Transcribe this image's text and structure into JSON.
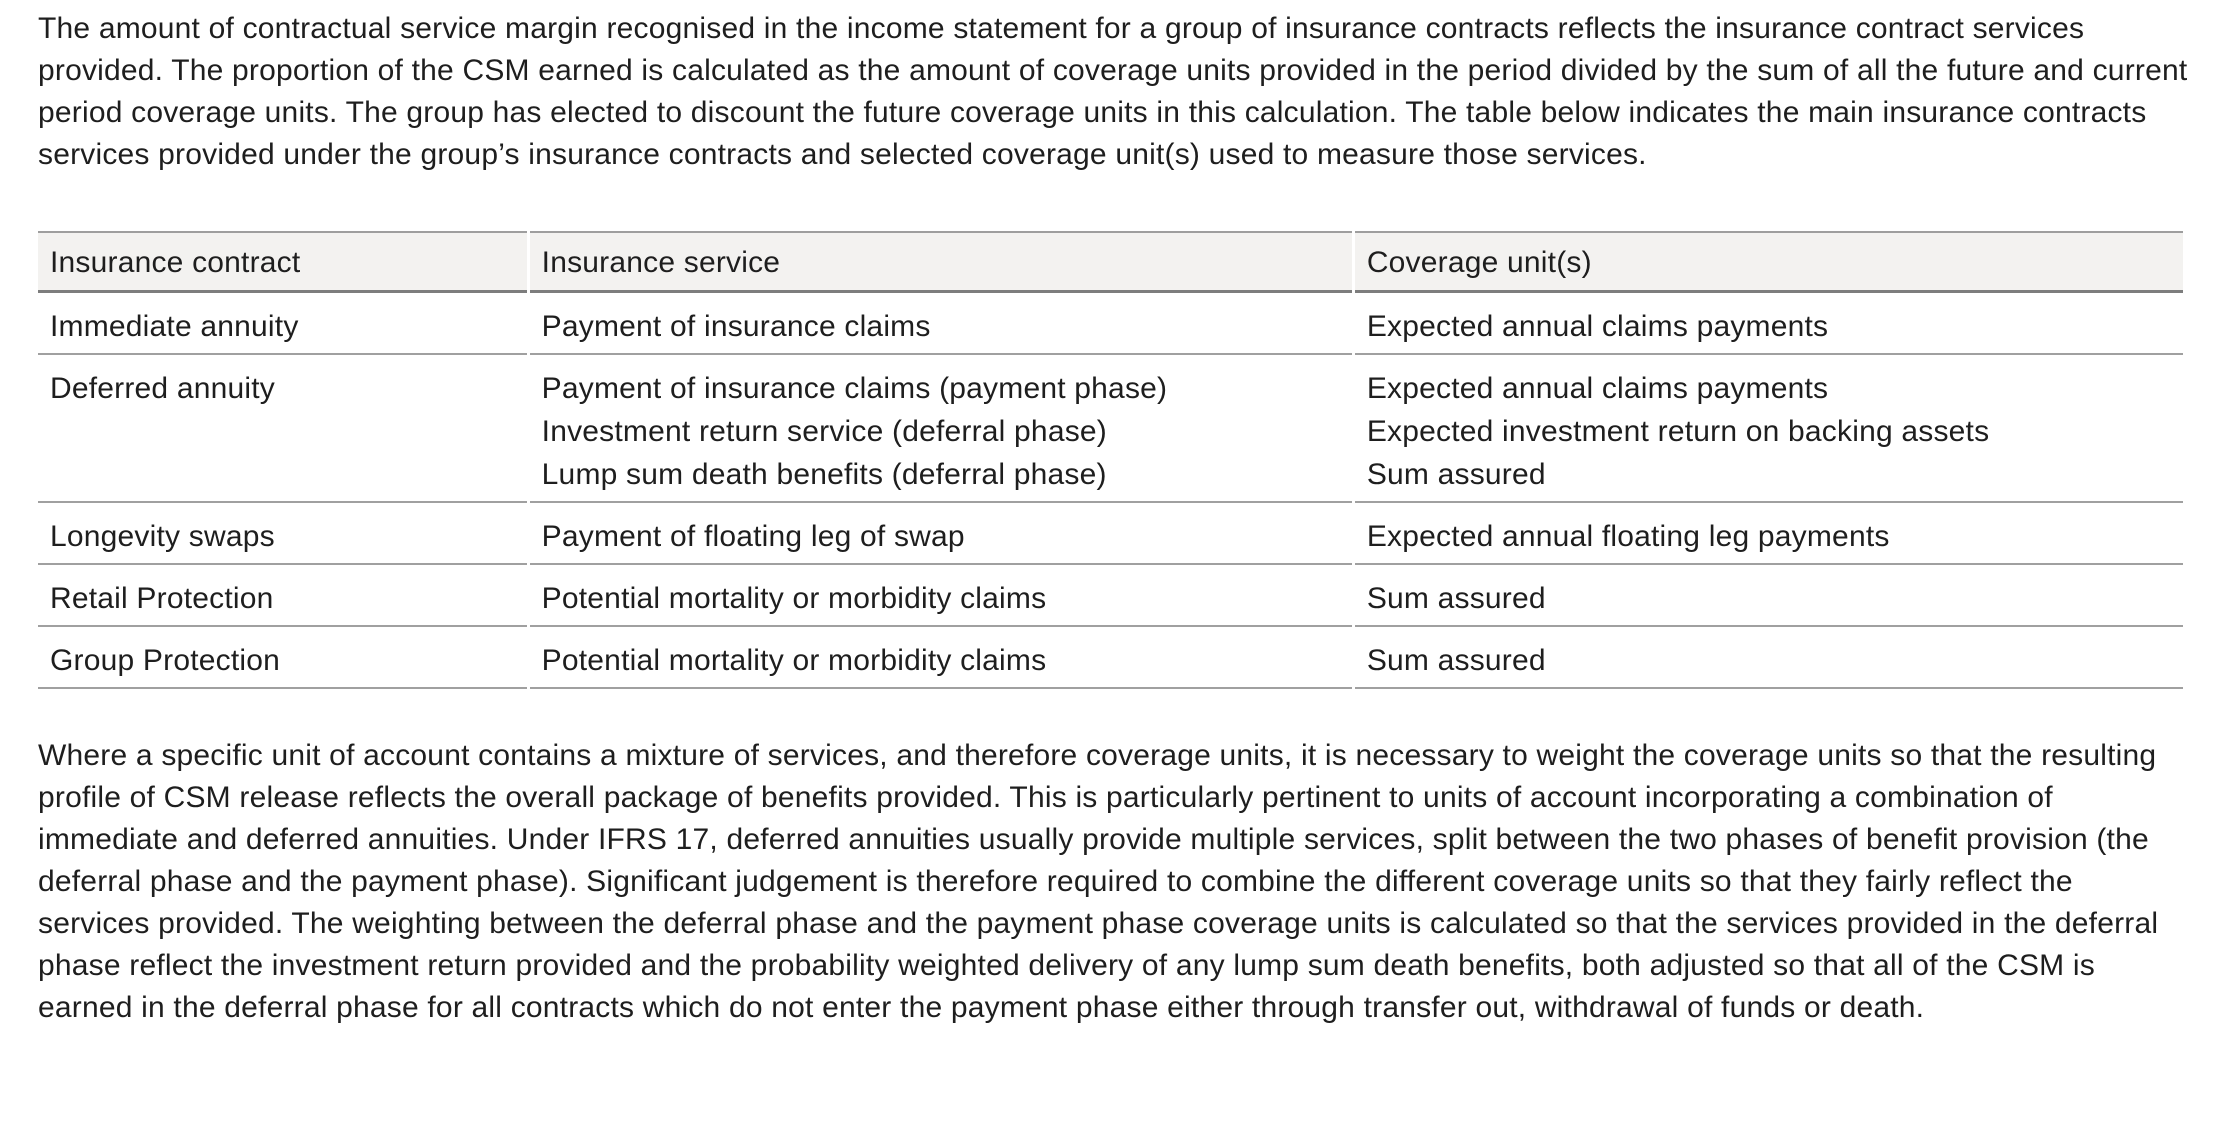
{
  "document": {
    "intro": "The amount of contractual service margin recognised in the income statement for a group of insurance contracts reflects the insurance contract services provided. The proportion of the CSM earned is calculated as the amount of coverage units provided in the period divided by the sum of all the future and current period coverage units. The group has elected to discount the future coverage units in this calculation. The table below indicates the main insurance contracts services provided under the group’s insurance contracts and selected coverage unit(s) used to measure those services.",
    "table": {
      "columns": [
        "Insurance contract",
        "Insurance service",
        "Coverage unit(s)"
      ],
      "rows": [
        {
          "contract": "Immediate annuity",
          "services": [
            "Payment of insurance claims"
          ],
          "units": [
            "Expected annual claims payments"
          ]
        },
        {
          "contract": "Deferred annuity",
          "services": [
            "Payment of insurance claims (payment phase)",
            "Investment return service (deferral phase)",
            "Lump sum death benefits (deferral phase)"
          ],
          "units": [
            "Expected annual claims payments",
            "Expected investment return on backing assets",
            "Sum assured"
          ]
        },
        {
          "contract": "Longevity swaps",
          "services": [
            "Payment of floating leg of swap"
          ],
          "units": [
            "Expected annual floating leg payments"
          ]
        },
        {
          "contract": "Retail Protection",
          "services": [
            "Potential mortality or morbidity claims"
          ],
          "units": [
            "Sum assured"
          ]
        },
        {
          "contract": "Group Protection",
          "services": [
            "Potential mortality or morbidity claims"
          ],
          "units": [
            "Sum assured"
          ]
        }
      ]
    },
    "discussion": "Where a specific unit of account contains a mixture of services, and therefore coverage units, it is necessary to weight the coverage units so that the resulting profile of CSM release reflects the overall package of benefits provided. This is particularly pertinent to units of account incorporating a combination of immediate and deferred annuities. Under IFRS 17, deferred annuities usually provide multiple services, split between the two phases of benefit provision (the deferral phase and the payment phase). Significant judgement is therefore required to combine the different coverage units so that they fairly reflect the services provided. The weighting between the deferral phase and the payment phase coverage units is calculated so that the services provided in the deferral phase reflect the investment return provided and the probability weighted delivery of any lump sum death benefits, both adjusted so that all of the CSM is earned in the deferral phase for all contracts which do not enter the payment phase either through transfer out, withdrawal of funds or death."
  },
  "colors": {
    "text": "#1e1e1e",
    "header_background": "#f3f2f0",
    "table_border": "#9e9e9e",
    "header_bottom_border": "#7d7d7d"
  }
}
